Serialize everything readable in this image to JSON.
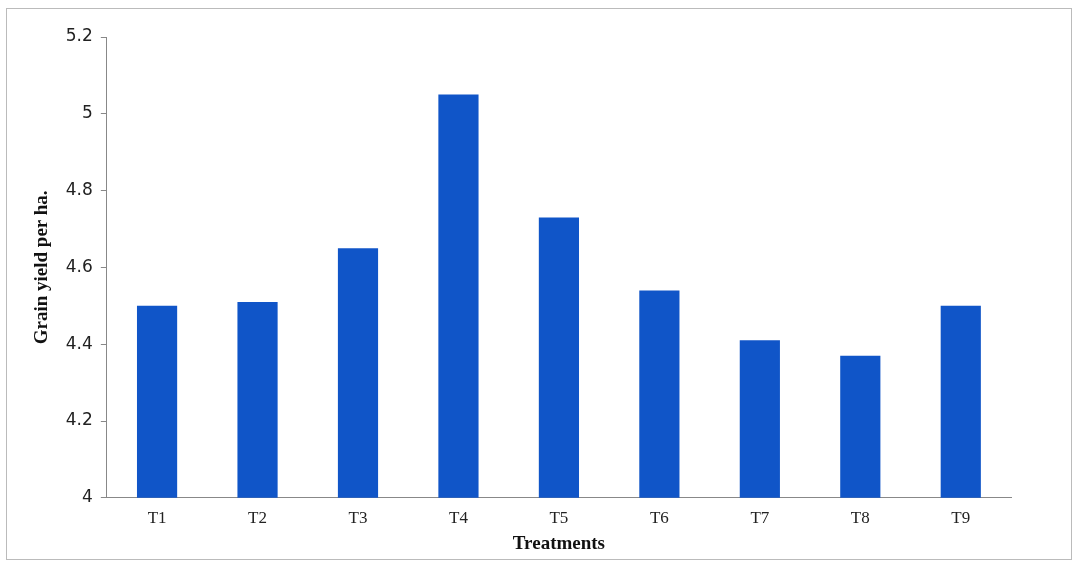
{
  "chart_data": {
    "type": "bar",
    "xlabel": "Treatments",
    "ylabel": "Grain yield per ha.",
    "categories": [
      "T1",
      "T2",
      "T3",
      "T4",
      "T5",
      "T6",
      "T7",
      "T8",
      "T9"
    ],
    "values": [
      4.5,
      4.51,
      4.65,
      5.05,
      4.73,
      4.54,
      4.41,
      4.37,
      4.5
    ],
    "color": "#1055c8",
    "ylim": [
      4,
      5.2
    ],
    "yticks": [
      4,
      4.2,
      4.4,
      4.6,
      4.8,
      5,
      5.2
    ],
    "grid": false,
    "legend": false
  }
}
